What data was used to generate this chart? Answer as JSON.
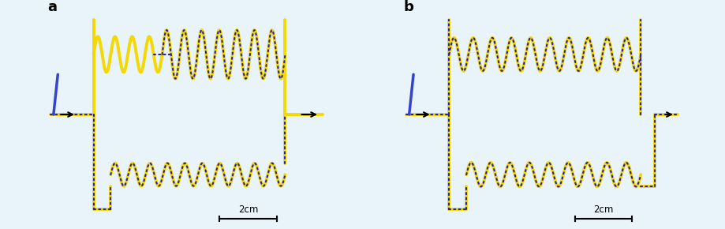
{
  "bg_color": "#e8f4fa",
  "yellow": "#f5d800",
  "blue_dot": "#2222aa",
  "blue_line": "#3344cc",
  "lw_yellow": 2.8,
  "lw_dot": 1.5,
  "scalebar_label": "2cm",
  "panel_labels": [
    "a",
    "b"
  ],
  "fig_width": 9.2,
  "fig_height": 2.9,
  "dpi": 100
}
